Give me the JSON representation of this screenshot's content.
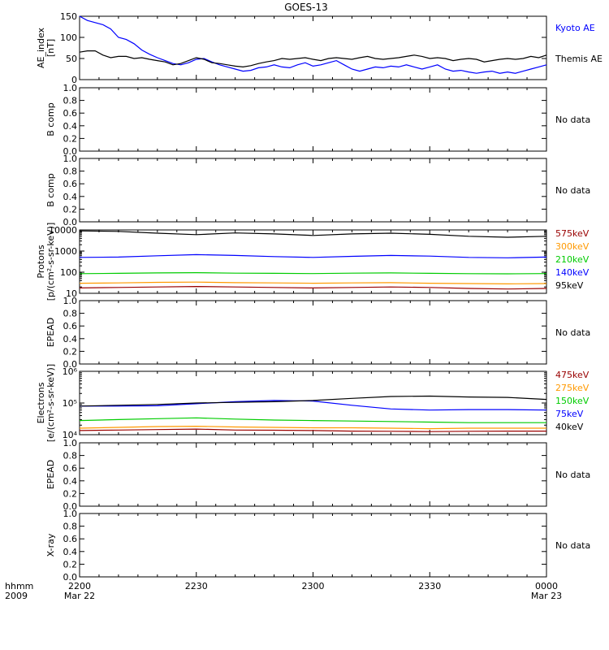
{
  "title": "GOES-13",
  "x_axis": {
    "ticks": [
      {
        "minutes": 0,
        "label": "2200",
        "sublabel": "Mar 22"
      },
      {
        "minutes": 30,
        "label": "2230",
        "sublabel": ""
      },
      {
        "minutes": 60,
        "label": "2300",
        "sublabel": ""
      },
      {
        "minutes": 90,
        "label": "2330",
        "sublabel": ""
      },
      {
        "minutes": 120,
        "label": "0000",
        "sublabel": "Mar 23"
      }
    ],
    "left_label": "hhmm",
    "left_sublabel": "2009"
  },
  "panels_text": {
    "no_data": "No data"
  },
  "colors": {
    "black": "#000000",
    "blue": "#0000ff",
    "green": "#00cc00",
    "orange": "#ff9900",
    "darkred": "#990000"
  },
  "chart_data": [
    {
      "type": "line",
      "ylabel": "AE_index\n[nT]",
      "ylim": [
        0,
        150
      ],
      "yticks": [
        0,
        50,
        100,
        150
      ],
      "series": [
        {
          "name": "Kyoto AE",
          "color": "#0000ff",
          "x": [
            0,
            2,
            4,
            6,
            8,
            10,
            12,
            14,
            16,
            18,
            20,
            22,
            24,
            26,
            28,
            30,
            32,
            34,
            36,
            38,
            40,
            42,
            44,
            46,
            48,
            50,
            52,
            54,
            56,
            58,
            60,
            62,
            64,
            66,
            68,
            70,
            72,
            74,
            76,
            78,
            80,
            82,
            84,
            86,
            88,
            90,
            92,
            94,
            96,
            98,
            100,
            102,
            104,
            106,
            108,
            110,
            112,
            114,
            116,
            118,
            120
          ],
          "y": [
            155,
            140,
            135,
            130,
            120,
            100,
            95,
            85,
            70,
            60,
            52,
            45,
            38,
            35,
            40,
            48,
            50,
            42,
            35,
            30,
            25,
            20,
            22,
            28,
            30,
            35,
            30,
            28,
            35,
            40,
            32,
            35,
            40,
            45,
            35,
            25,
            20,
            25,
            30,
            28,
            32,
            30,
            35,
            30,
            25,
            30,
            35,
            25,
            20,
            22,
            18,
            15,
            18,
            20,
            15,
            18,
            15,
            20,
            25,
            30,
            35
          ]
        },
        {
          "name": "Themis AE",
          "color": "#000000",
          "x": [
            0,
            2,
            4,
            6,
            8,
            10,
            12,
            14,
            16,
            18,
            20,
            22,
            24,
            26,
            28,
            30,
            32,
            34,
            36,
            38,
            40,
            42,
            44,
            46,
            48,
            50,
            52,
            54,
            56,
            58,
            60,
            62,
            64,
            66,
            68,
            70,
            72,
            74,
            76,
            78,
            80,
            82,
            84,
            86,
            88,
            90,
            92,
            94,
            96,
            98,
            100,
            102,
            104,
            106,
            108,
            110,
            112,
            114,
            116,
            118,
            120
          ],
          "y": [
            65,
            68,
            68,
            58,
            52,
            55,
            55,
            50,
            52,
            48,
            45,
            42,
            35,
            38,
            45,
            52,
            48,
            40,
            38,
            35,
            32,
            30,
            33,
            38,
            42,
            45,
            50,
            48,
            50,
            52,
            48,
            45,
            50,
            52,
            50,
            48,
            52,
            55,
            50,
            48,
            50,
            52,
            55,
            58,
            55,
            50,
            52,
            50,
            45,
            48,
            50,
            48,
            42,
            45,
            48,
            50,
            48,
            50,
            55,
            52,
            58
          ]
        }
      ]
    },
    {
      "type": "line",
      "ylabel": "B comp",
      "ylim": [
        0,
        1
      ],
      "yticks": [
        0.0,
        0.2,
        0.4,
        0.6,
        0.8,
        1.0
      ],
      "series": [],
      "status": "No data"
    },
    {
      "type": "line",
      "ylabel": "B comp",
      "ylim": [
        0,
        1
      ],
      "yticks": [
        0.0,
        0.2,
        0.4,
        0.6,
        0.8,
        1.0
      ],
      "series": [],
      "status": "No data"
    },
    {
      "type": "line",
      "ylabel": "Protons\n[p/(cm²-s-sr-keV)]",
      "log": true,
      "ylim": [
        10,
        10000
      ],
      "yticks": [
        10,
        100,
        1000,
        10000
      ],
      "series": [
        {
          "name": "575keV",
          "color": "#990000",
          "x": [
            0,
            10,
            20,
            30,
            40,
            50,
            60,
            70,
            80,
            90,
            100,
            110,
            120
          ],
          "y": [
            18,
            19,
            20,
            21,
            20,
            19,
            18,
            19,
            20,
            19,
            17,
            16,
            17
          ]
        },
        {
          "name": "300keV",
          "color": "#ff9900",
          "x": [
            0,
            10,
            20,
            30,
            40,
            50,
            60,
            70,
            80,
            90,
            100,
            110,
            120
          ],
          "y": [
            30,
            31,
            33,
            34,
            32,
            31,
            30,
            31,
            32,
            30,
            29,
            28,
            29
          ]
        },
        {
          "name": "210keV",
          "color": "#00cc00",
          "x": [
            0,
            10,
            20,
            30,
            40,
            50,
            60,
            70,
            80,
            90,
            100,
            110,
            120
          ],
          "y": [
            85,
            88,
            92,
            95,
            90,
            88,
            86,
            90,
            92,
            88,
            85,
            84,
            86
          ]
        },
        {
          "name": "140keV",
          "color": "#0000ff",
          "x": [
            0,
            10,
            20,
            30,
            40,
            50,
            60,
            70,
            80,
            90,
            100,
            110,
            120
          ],
          "y": [
            500,
            520,
            600,
            680,
            620,
            550,
            500,
            560,
            620,
            580,
            500,
            480,
            520
          ]
        },
        {
          "name": "95keV",
          "color": "#000000",
          "x": [
            0,
            10,
            20,
            30,
            40,
            50,
            60,
            70,
            80,
            90,
            100,
            110,
            120
          ],
          "y": [
            9000,
            8500,
            7000,
            6000,
            7200,
            6500,
            5500,
            6500,
            7000,
            6200,
            5000,
            4500,
            5000
          ]
        }
      ]
    },
    {
      "type": "line",
      "ylabel": "EPEAD",
      "ylim": [
        0,
        1
      ],
      "yticks": [
        0.0,
        0.2,
        0.4,
        0.6,
        0.8,
        1.0
      ],
      "series": [],
      "status": "No data"
    },
    {
      "type": "line",
      "ylabel": "Electrons\n[e/(cm²-s-sr-keV)]",
      "log": true,
      "ylim": [
        10000,
        1000000
      ],
      "yticks": [
        10000,
        100000,
        1000000
      ],
      "tick_labels": [
        "10⁴",
        "10⁵",
        "10⁶"
      ],
      "series": [
        {
          "name": "475keV",
          "color": "#990000",
          "x": [
            0,
            10,
            20,
            30,
            40,
            50,
            60,
            70,
            80,
            90,
            100,
            110,
            120
          ],
          "y": [
            13500,
            14000,
            14500,
            15000,
            14000,
            13800,
            13500,
            13000,
            12800,
            12500,
            12800,
            13000,
            13000
          ]
        },
        {
          "name": "275keV",
          "color": "#ff9900",
          "x": [
            0,
            10,
            20,
            30,
            40,
            50,
            60,
            70,
            80,
            90,
            100,
            110,
            120
          ],
          "y": [
            16000,
            17000,
            18000,
            18500,
            17500,
            17000,
            16500,
            16500,
            16000,
            15500,
            16000,
            16000,
            16000
          ]
        },
        {
          "name": "150keV",
          "color": "#00cc00",
          "x": [
            0,
            10,
            20,
            30,
            40,
            50,
            60,
            70,
            80,
            90,
            100,
            110,
            120
          ],
          "y": [
            28000,
            30000,
            32000,
            34000,
            31000,
            29000,
            28000,
            27000,
            26000,
            25000,
            24000,
            24000,
            24000
          ]
        },
        {
          "name": "75keV",
          "color": "#0000ff",
          "x": [
            0,
            10,
            20,
            30,
            40,
            50,
            60,
            70,
            80,
            90,
            100,
            110,
            120
          ],
          "y": [
            80000,
            80000,
            82000,
            95000,
            110000,
            120000,
            115000,
            85000,
            65000,
            60000,
            62000,
            62000,
            60000
          ]
        },
        {
          "name": "40keV",
          "color": "#000000",
          "x": [
            0,
            10,
            20,
            30,
            40,
            50,
            60,
            70,
            80,
            90,
            100,
            110,
            120
          ],
          "y": [
            80000,
            85000,
            90000,
            100000,
            105000,
            110000,
            120000,
            140000,
            160000,
            165000,
            155000,
            150000,
            130000
          ]
        }
      ]
    },
    {
      "type": "line",
      "ylabel": "EPEAD",
      "ylim": [
        0,
        1
      ],
      "yticks": [
        0.0,
        0.2,
        0.4,
        0.6,
        0.8,
        1.0
      ],
      "series": [],
      "status": "No data"
    },
    {
      "type": "line",
      "ylabel": "X-ray",
      "ylim": [
        0,
        1
      ],
      "yticks": [
        0.0,
        0.2,
        0.4,
        0.6,
        0.8,
        1.0
      ],
      "series": [],
      "status": "No data"
    }
  ]
}
